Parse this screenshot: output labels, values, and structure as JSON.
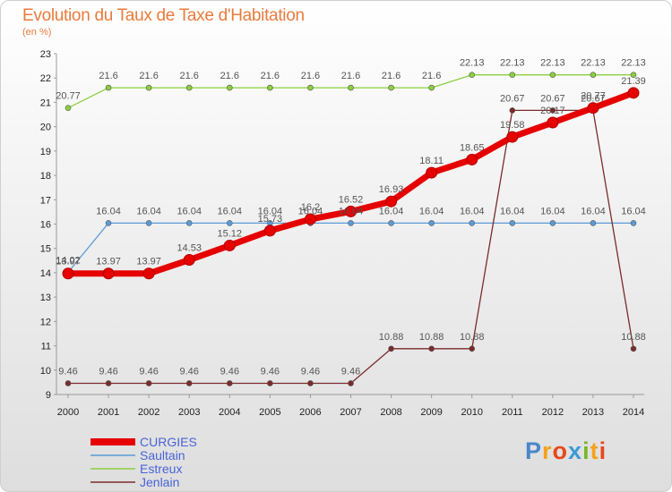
{
  "title": "Evolution du Taux de Taxe d'Habitation",
  "unit": "(en %)",
  "logo": "Proxiti",
  "chart_data": {
    "type": "line",
    "title": "Evolution du Taux de Taxe d'Habitation",
    "ylabel": "(en %)",
    "xlabel": "",
    "x": [
      "2000",
      "2001",
      "2002",
      "2003",
      "2004",
      "2005",
      "2006",
      "2007",
      "2008",
      "2009",
      "2010",
      "2011",
      "2012",
      "2013",
      "2014"
    ],
    "ylim": [
      9,
      23
    ],
    "yticks": [
      "9",
      "10",
      "11",
      "12",
      "13",
      "14",
      "15",
      "16",
      "17",
      "18",
      "19",
      "20",
      "21",
      "22",
      "23"
    ],
    "grid": false,
    "legend": "bottom-left",
    "series": [
      {
        "name": "CURGIES",
        "color": "#e60000",
        "values": [
          13.97,
          13.97,
          13.97,
          14.53,
          15.12,
          15.73,
          16.2,
          16.52,
          16.93,
          18.11,
          18.65,
          19.58,
          20.17,
          20.77,
          21.39
        ],
        "labels": [
          "13.97",
          "13.97",
          "13.97",
          "14.53",
          "15.12",
          "15.73",
          "16.2",
          "16.52",
          "16.93",
          "18.11",
          "18.65",
          "19.58",
          "20.17",
          "20.77",
          "21.39"
        ]
      },
      {
        "name": "Saultain",
        "color": "#5b9bd5",
        "values": [
          14.02,
          16.04,
          16.04,
          16.04,
          16.04,
          16.04,
          16.04,
          16.04,
          16.04,
          16.04,
          16.04,
          16.04,
          16.04,
          16.04,
          16.04
        ],
        "labels": [
          "14.02",
          "16.04",
          "16.04",
          "16.04",
          "16.04",
          "16.04",
          "16.04",
          "16.04",
          "16.04",
          "16.04",
          "16.04",
          "16.04",
          "16.04",
          "16.04",
          "16.04"
        ]
      },
      {
        "name": "Estreux",
        "color": "#8ccf3e",
        "values": [
          20.77,
          21.6,
          21.6,
          21.6,
          21.6,
          21.6,
          21.6,
          21.6,
          21.6,
          21.6,
          22.13,
          22.13,
          22.13,
          22.13,
          22.13
        ],
        "labels": [
          "20.77",
          "21.6",
          "21.6",
          "21.6",
          "21.6",
          "21.6",
          "21.6",
          "21.6",
          "21.6",
          "21.6",
          "22.13",
          "22.13",
          "22.13",
          "22.13",
          "22.13"
        ]
      },
      {
        "name": "Jenlain",
        "color": "#7b2b2b",
        "values": [
          9.46,
          9.46,
          9.46,
          9.46,
          9.46,
          9.46,
          9.46,
          9.46,
          10.88,
          10.88,
          10.88,
          20.67,
          20.67,
          20.67,
          10.88
        ],
        "labels": [
          "9.46",
          "9.46",
          "9.46",
          "9.46",
          "9.46",
          "9.46",
          "9.46",
          "9.46",
          "10.88",
          "10.88",
          "10.88",
          "20.67",
          "20.67",
          "20.67",
          "10.88"
        ]
      }
    ]
  }
}
